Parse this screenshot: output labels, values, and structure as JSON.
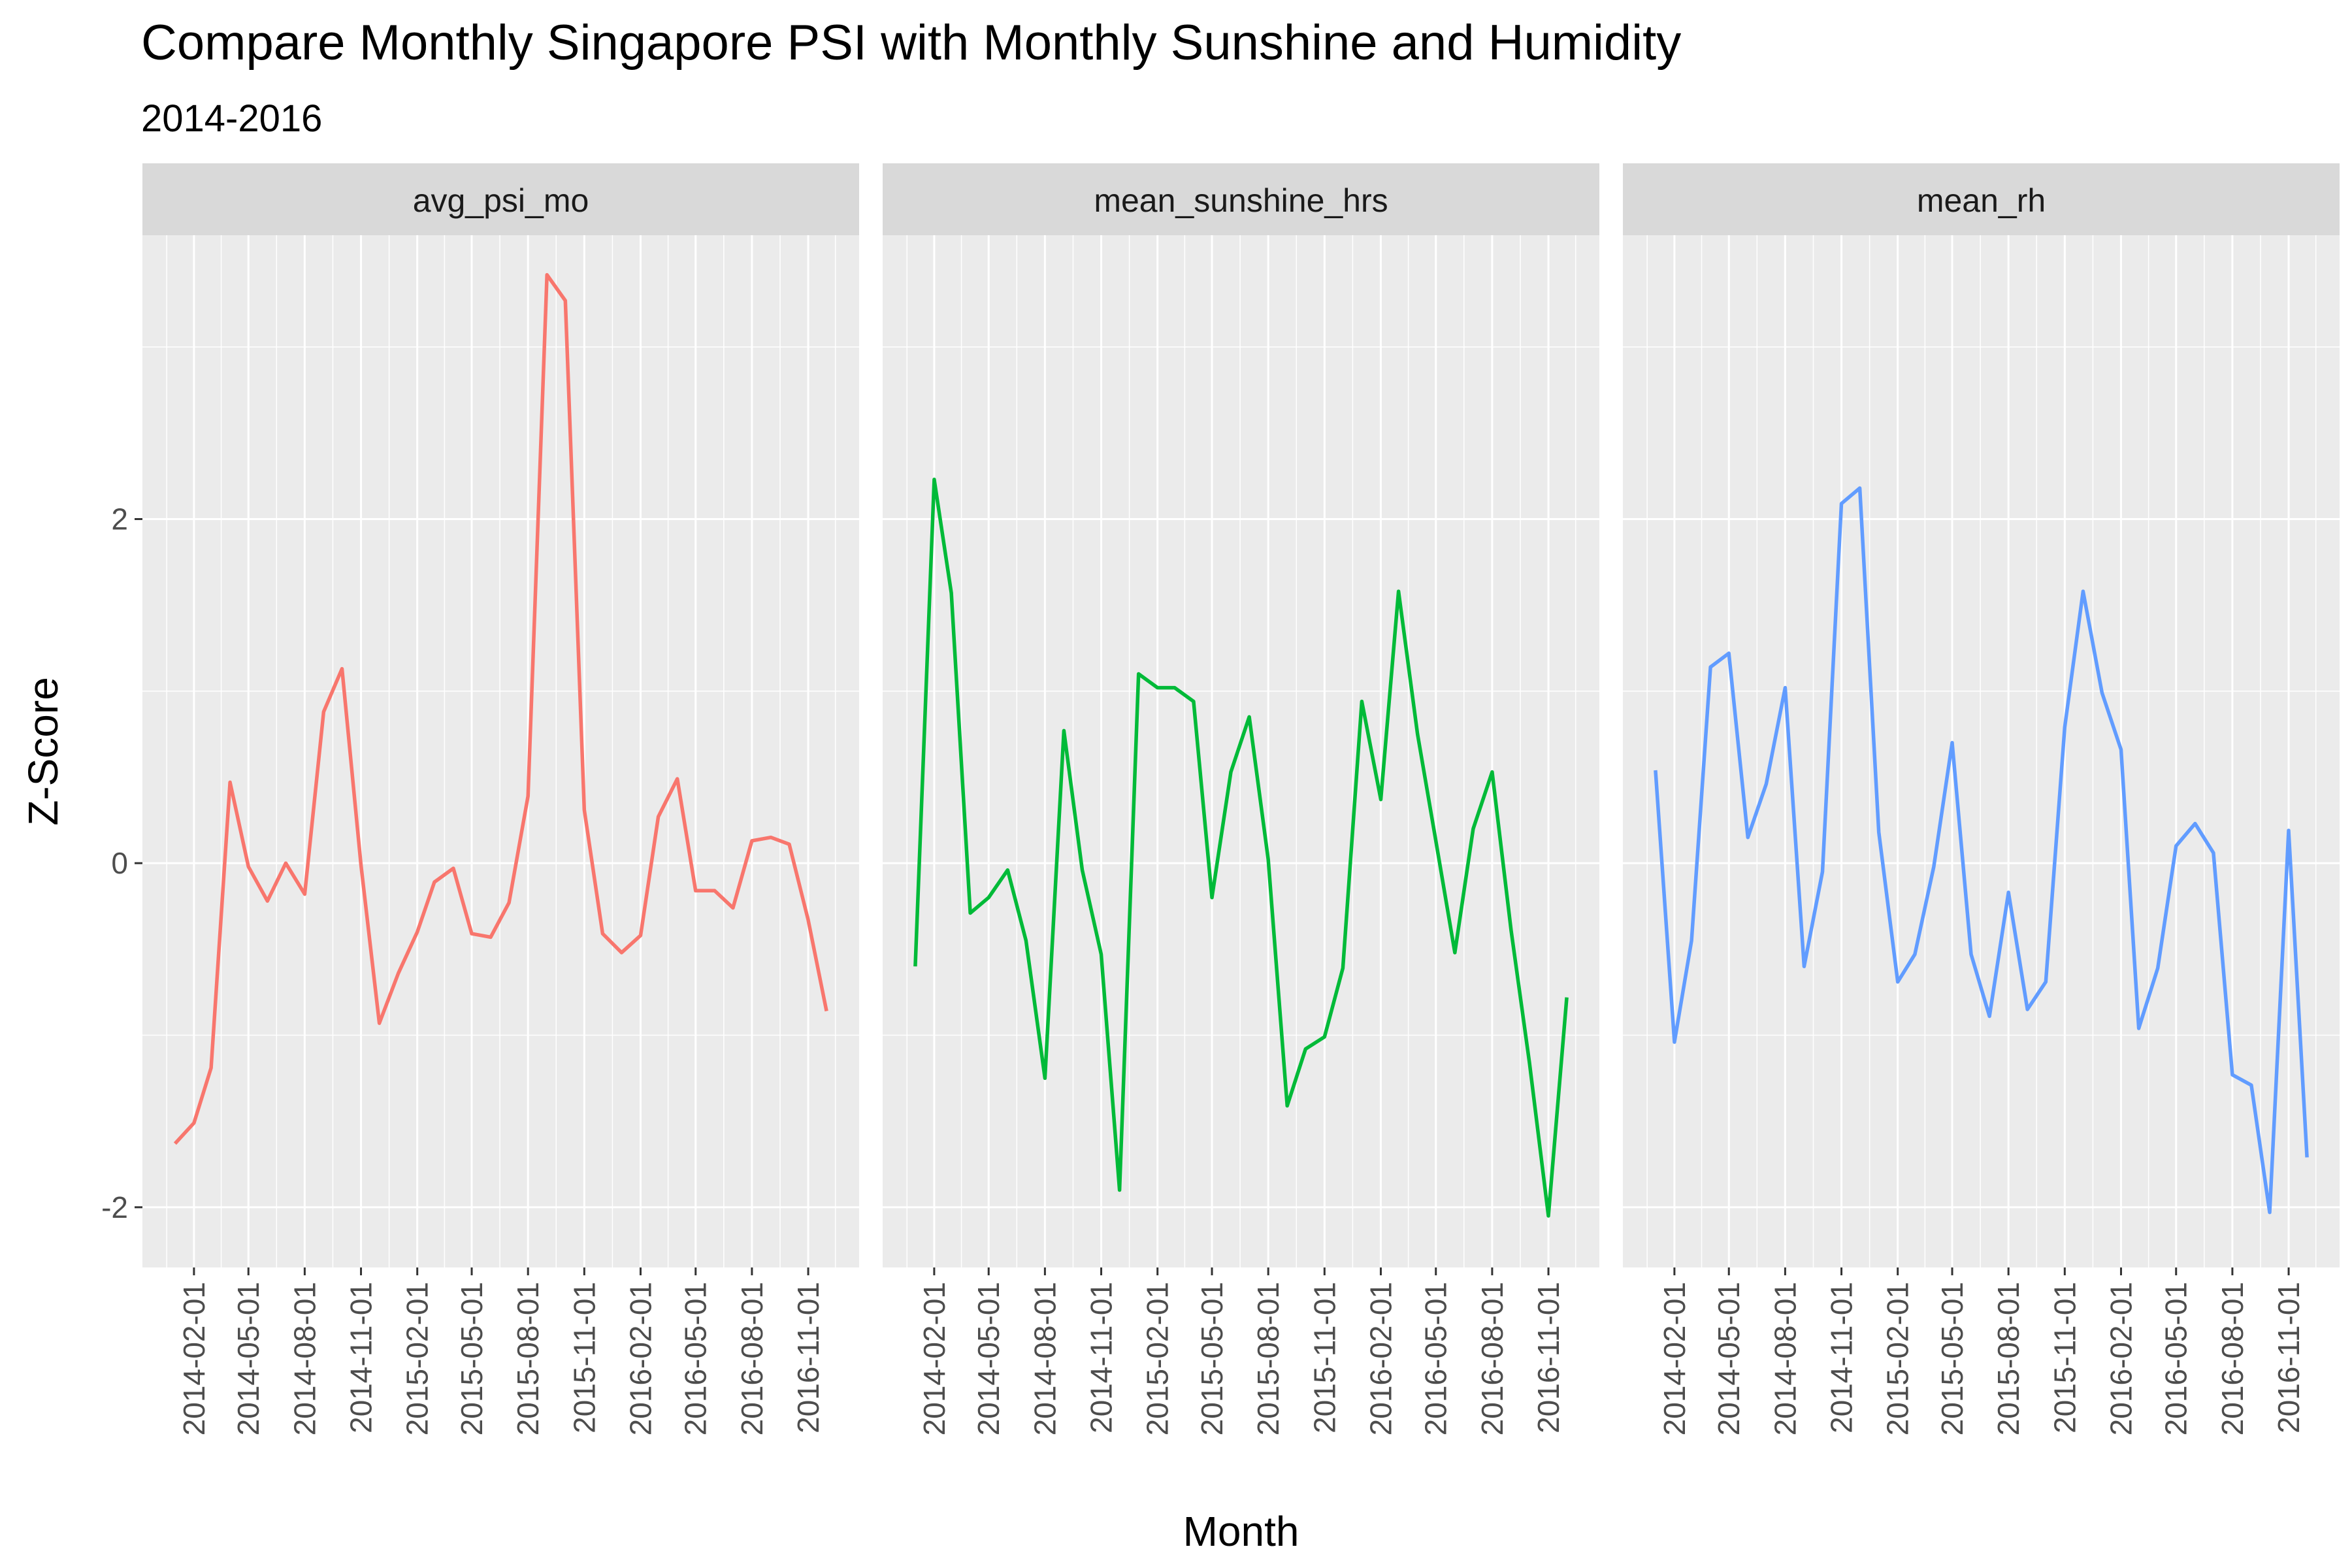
{
  "chart_data": {
    "type": "line",
    "title": "Compare Monthly Singapore PSI with Monthly Sunshine and Humidity",
    "subtitle": "2014-2016",
    "xlabel": "Month",
    "ylabel": "Z-Score",
    "ylim": [
      -2.35,
      3.65
    ],
    "y_ticks": [
      -2,
      0,
      2
    ],
    "x_tick_labels": [
      "2014-02-01",
      "2014-05-01",
      "2014-08-01",
      "2014-11-01",
      "2015-02-01",
      "2015-05-01",
      "2015-08-01",
      "2015-11-01",
      "2016-02-01",
      "2016-05-01",
      "2016-08-01",
      "2016-11-01"
    ],
    "x": [
      "2014-01",
      "2014-02",
      "2014-03",
      "2014-04",
      "2014-05",
      "2014-06",
      "2014-07",
      "2014-08",
      "2014-09",
      "2014-10",
      "2014-11",
      "2014-12",
      "2015-01",
      "2015-02",
      "2015-03",
      "2015-04",
      "2015-05",
      "2015-06",
      "2015-07",
      "2015-08",
      "2015-09",
      "2015-10",
      "2015-11",
      "2015-12",
      "2016-01",
      "2016-02",
      "2016-03",
      "2016-04",
      "2016-05",
      "2016-06",
      "2016-07",
      "2016-08",
      "2016-09",
      "2016-10",
      "2016-11",
      "2016-12"
    ],
    "grid": true,
    "facets": [
      {
        "name": "avg_psi_mo",
        "color": "#F8766D",
        "values": [
          -1.63,
          -1.51,
          -1.19,
          0.47,
          -0.02,
          -0.22,
          0.0,
          -0.18,
          0.88,
          1.13,
          -0.01,
          -0.93,
          -0.64,
          -0.4,
          -0.11,
          -0.03,
          -0.41,
          -0.43,
          -0.23,
          0.39,
          3.42,
          3.27,
          0.31,
          -0.41,
          -0.52,
          -0.42,
          0.27,
          0.49,
          -0.16,
          -0.16,
          -0.26,
          0.13,
          0.15,
          0.11,
          -0.33,
          -0.86
        ]
      },
      {
        "name": "mean_sunshine_hrs",
        "color": "#00BA38",
        "values": [
          -0.6,
          2.23,
          1.57,
          -0.29,
          -0.2,
          -0.04,
          -0.45,
          -1.25,
          0.77,
          -0.04,
          -0.53,
          -1.9,
          1.1,
          1.02,
          1.02,
          0.94,
          -0.2,
          0.53,
          0.85,
          0.02,
          -1.41,
          -1.08,
          -1.01,
          -0.61,
          0.94,
          0.37,
          1.58,
          0.75,
          0.13,
          -0.52,
          0.2,
          0.53,
          -0.39,
          -1.16,
          -2.05,
          -0.78
        ]
      },
      {
        "name": "mean_rh",
        "color": "#619CFF",
        "values": [
          0.54,
          -1.04,
          -0.45,
          1.14,
          1.22,
          0.15,
          0.46,
          1.02,
          -0.6,
          -0.05,
          2.09,
          2.18,
          0.18,
          -0.69,
          -0.53,
          -0.02,
          0.7,
          -0.53,
          -0.89,
          -0.17,
          -0.85,
          -0.69,
          0.79,
          1.58,
          0.99,
          0.66,
          -0.96,
          -0.61,
          0.1,
          0.23,
          0.06,
          -1.23,
          -1.29,
          -2.03,
          0.19,
          -1.71
        ]
      }
    ]
  }
}
